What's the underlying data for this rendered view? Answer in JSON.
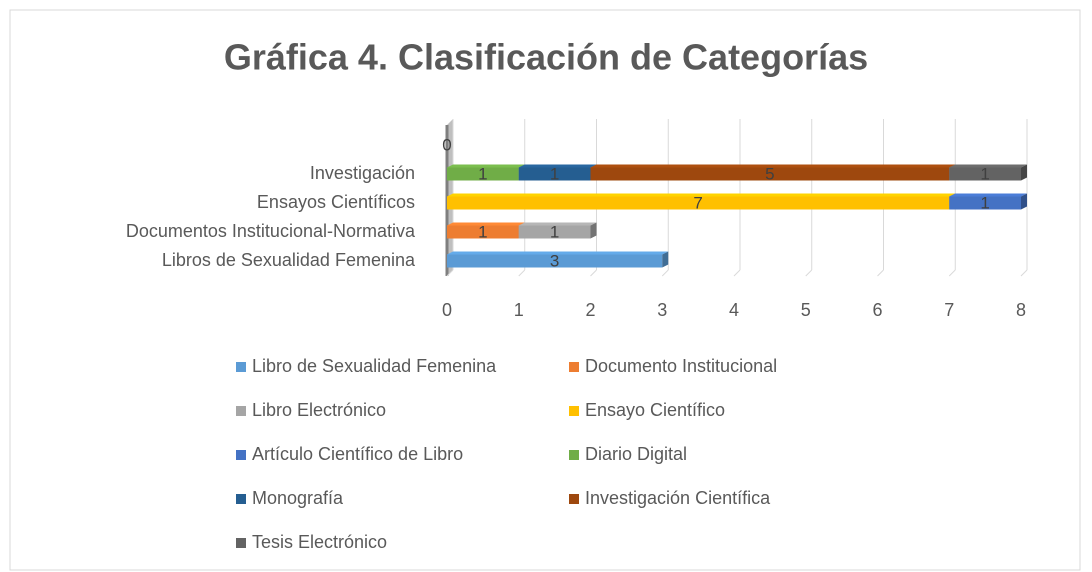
{
  "chart_data": {
    "type": "bar",
    "orientation": "horizontal",
    "stacked": true,
    "title": "Gráfica 4. Clasificación de Categorías",
    "categories": [
      "Libros de Sexualidad Femenina",
      "Documentos Institucional-Normativa",
      "Ensayos Científicos",
      "Investigación",
      null
    ],
    "series": [
      {
        "name": "Libro de Sexualidad Femenina",
        "color": "#5b9bd5",
        "values": [
          3,
          null,
          null,
          null,
          0
        ]
      },
      {
        "name": "Documento Institucional",
        "color": "#ed7d31",
        "values": [
          null,
          1,
          null,
          null,
          null
        ]
      },
      {
        "name": "Libro Electrónico",
        "color": "#a5a5a5",
        "values": [
          null,
          1,
          null,
          null,
          null
        ]
      },
      {
        "name": "Ensayo Científico",
        "color": "#ffc000",
        "values": [
          null,
          null,
          7,
          null,
          null
        ]
      },
      {
        "name": "Artículo Científico de Libro",
        "color": "#4472c4",
        "values": [
          null,
          null,
          1,
          null,
          null
        ]
      },
      {
        "name": "Diario Digital",
        "color": "#70ad47",
        "values": [
          null,
          null,
          null,
          1,
          null
        ]
      },
      {
        "name": "Monografía",
        "color": "#255e91",
        "values": [
          null,
          null,
          null,
          1,
          null
        ]
      },
      {
        "name": "Investigación Científica",
        "color": "#9e480e",
        "values": [
          null,
          null,
          null,
          5,
          null
        ]
      },
      {
        "name": "Tesis Electrónico",
        "color": "#636363",
        "values": [
          null,
          null,
          null,
          1,
          null
        ]
      }
    ],
    "xlim": [
      0,
      8
    ],
    "xticks": [
      0,
      1,
      2,
      3,
      4,
      5,
      6,
      7,
      8
    ],
    "grid": true,
    "legend": "bottom"
  }
}
